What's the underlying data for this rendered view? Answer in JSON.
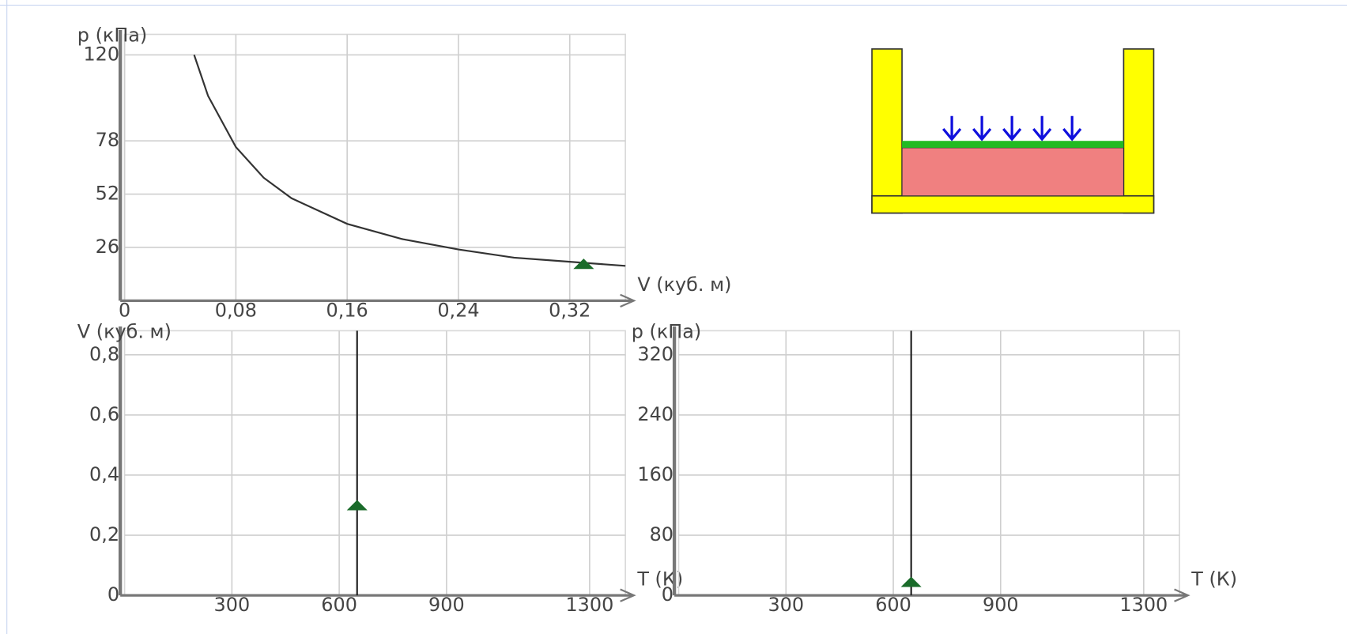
{
  "chart_data": [
    {
      "type": "line",
      "y_label": "p (кПа)",
      "x_label": "V (куб. м)",
      "xlim": [
        0,
        0.36
      ],
      "ylim": [
        0,
        130
      ],
      "xticks": [
        0,
        {
          "value": 0.08,
          "label": "0,08"
        },
        {
          "value": 0.16,
          "label": "0,16"
        },
        {
          "value": 0.24,
          "label": "0,24"
        },
        {
          "value": 0.32,
          "label": "0,32"
        }
      ],
      "yticks": [
        26,
        52,
        78,
        120
      ],
      "grid": true,
      "series": [
        {
          "color": "#333333",
          "x": [
            0.05,
            0.06,
            0.08,
            0.1,
            0.12,
            0.16,
            0.2,
            0.24,
            0.28,
            0.32,
            0.36
          ],
          "values": [
            120,
            100,
            75,
            60,
            50,
            37.5,
            30,
            25,
            21,
            19,
            17
          ]
        }
      ],
      "marker": {
        "x": 0.33,
        "y": 18,
        "color": "#1a6b2a"
      }
    },
    {
      "type": "line",
      "y_label": "V (куб. м)",
      "x_label": "T (К)",
      "xlim": [
        0,
        1400
      ],
      "ylim": [
        0,
        0.88
      ],
      "xticks": [
        300,
        600,
        900,
        1300
      ],
      "yticks": [
        0,
        {
          "value": 0.2,
          "label": "0,2"
        },
        {
          "value": 0.4,
          "label": "0,4"
        },
        {
          "value": 0.6,
          "label": "0,6"
        },
        {
          "value": 0.8,
          "label": "0,8"
        }
      ],
      "grid": true,
      "series": [
        {
          "color": "#222222",
          "x": [
            650,
            650
          ],
          "values": [
            0,
            0.88
          ]
        }
      ],
      "marker": {
        "x": 650,
        "y": 0.3,
        "color": "#1a6b2a"
      }
    },
    {
      "type": "line",
      "y_label": "p (кПа)",
      "x_label": "T (К)",
      "xlim": [
        0,
        1400
      ],
      "ylim": [
        0,
        352
      ],
      "xticks": [
        300,
        600,
        900,
        1300
      ],
      "yticks": [
        0,
        80,
        160,
        240,
        320
      ],
      "grid": true,
      "series": [
        {
          "color": "#222222",
          "x": [
            650,
            650
          ],
          "values": [
            0,
            352
          ]
        }
      ],
      "marker": {
        "x": 650,
        "y": 18,
        "color": "#1a6b2a"
      }
    }
  ]
}
